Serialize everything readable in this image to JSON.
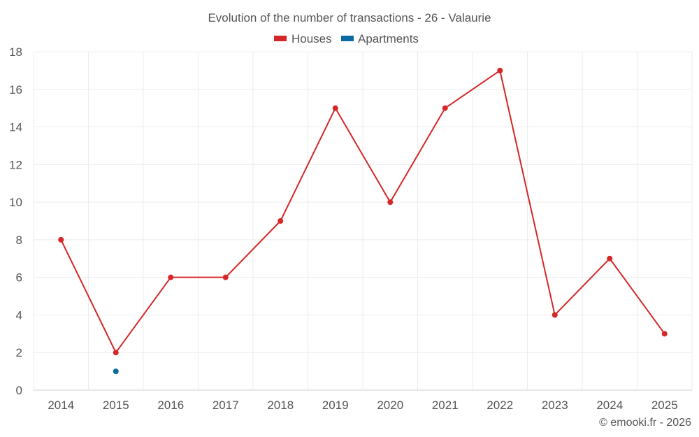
{
  "chart_data": {
    "type": "line",
    "title": "Evolution of the number of transactions - 26 - Valaurie",
    "categories": [
      "2014",
      "2015",
      "2016",
      "2017",
      "2018",
      "2019",
      "2020",
      "2021",
      "2022",
      "2023",
      "2024",
      "2025"
    ],
    "series": [
      {
        "name": "Houses",
        "color": "#d62728",
        "values": [
          8,
          2,
          6,
          6,
          9,
          15,
          10,
          15,
          17,
          4,
          7,
          3
        ]
      },
      {
        "name": "Apartments",
        "color": "#0b6aa2",
        "values": [
          null,
          1,
          null,
          null,
          null,
          null,
          null,
          null,
          null,
          null,
          null,
          null
        ]
      }
    ],
    "ylim": [
      0,
      18
    ],
    "yticks": [
      0,
      2,
      4,
      6,
      8,
      10,
      12,
      14,
      16,
      18
    ],
    "grid": true,
    "legend_position": "top-center"
  },
  "credit": "© emooki.fr - 2026"
}
